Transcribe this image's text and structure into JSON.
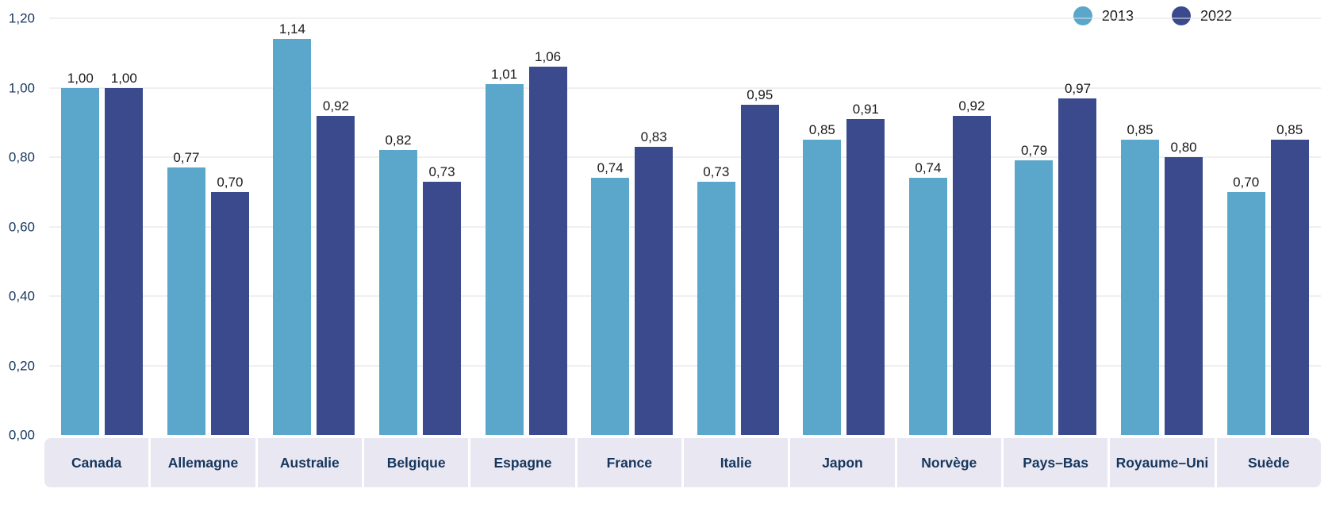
{
  "legend": {
    "items": [
      {
        "label": "2013",
        "color": "#5ba7cb"
      },
      {
        "label": "2022",
        "color": "#3a4a8c"
      }
    ]
  },
  "colors": {
    "series_2013": "#5ba7cb",
    "series_2022": "#3a4a8c",
    "axis_label": "#17375e",
    "category_text": "#16365d",
    "category_band": "#e9e8f2",
    "gridline": "#e2e2e6",
    "value_label": "#1a1a1a"
  },
  "chart_data": {
    "type": "bar",
    "title": "",
    "xlabel": "",
    "ylabel": "",
    "categories": [
      "Canada",
      "Allemagne",
      "Australie",
      "Belgique",
      "Espagne",
      "France",
      "Italie",
      "Japon",
      "Norvège",
      "Pays–Bas",
      "Royaume–Uni",
      "Suède"
    ],
    "series": [
      {
        "name": "2013",
        "color": "#5ba7cb",
        "values": [
          1.0,
          0.77,
          1.14,
          0.82,
          1.01,
          0.74,
          0.73,
          0.85,
          0.74,
          0.79,
          0.85,
          0.7
        ]
      },
      {
        "name": "2022",
        "color": "#3a4a8c",
        "values": [
          1.0,
          0.7,
          0.92,
          0.73,
          1.06,
          0.83,
          0.95,
          0.91,
          0.92,
          0.97,
          0.8,
          0.85
        ]
      }
    ],
    "value_labels": [
      [
        "1,00",
        "0,77",
        "1,14",
        "0,82",
        "1,01",
        "0,74",
        "0,73",
        "0,85",
        "0,74",
        "0,79",
        "0,85",
        "0,70"
      ],
      [
        "1,00",
        "0,70",
        "0,92",
        "0,73",
        "1,06",
        "0,83",
        "0,95",
        "0,91",
        "0,92",
        "0,97",
        "0,80",
        "0,85"
      ]
    ],
    "ylim": [
      0,
      1.2
    ],
    "yticks": [
      "0,00",
      "0,20",
      "0,40",
      "0,60",
      "0,80",
      "1,00",
      "1,20"
    ],
    "ytick_values": [
      0,
      0.2,
      0.4,
      0.6,
      0.8,
      1.0,
      1.2
    ],
    "grid": true,
    "legend_position": "top-right",
    "decimal_separator": ","
  }
}
